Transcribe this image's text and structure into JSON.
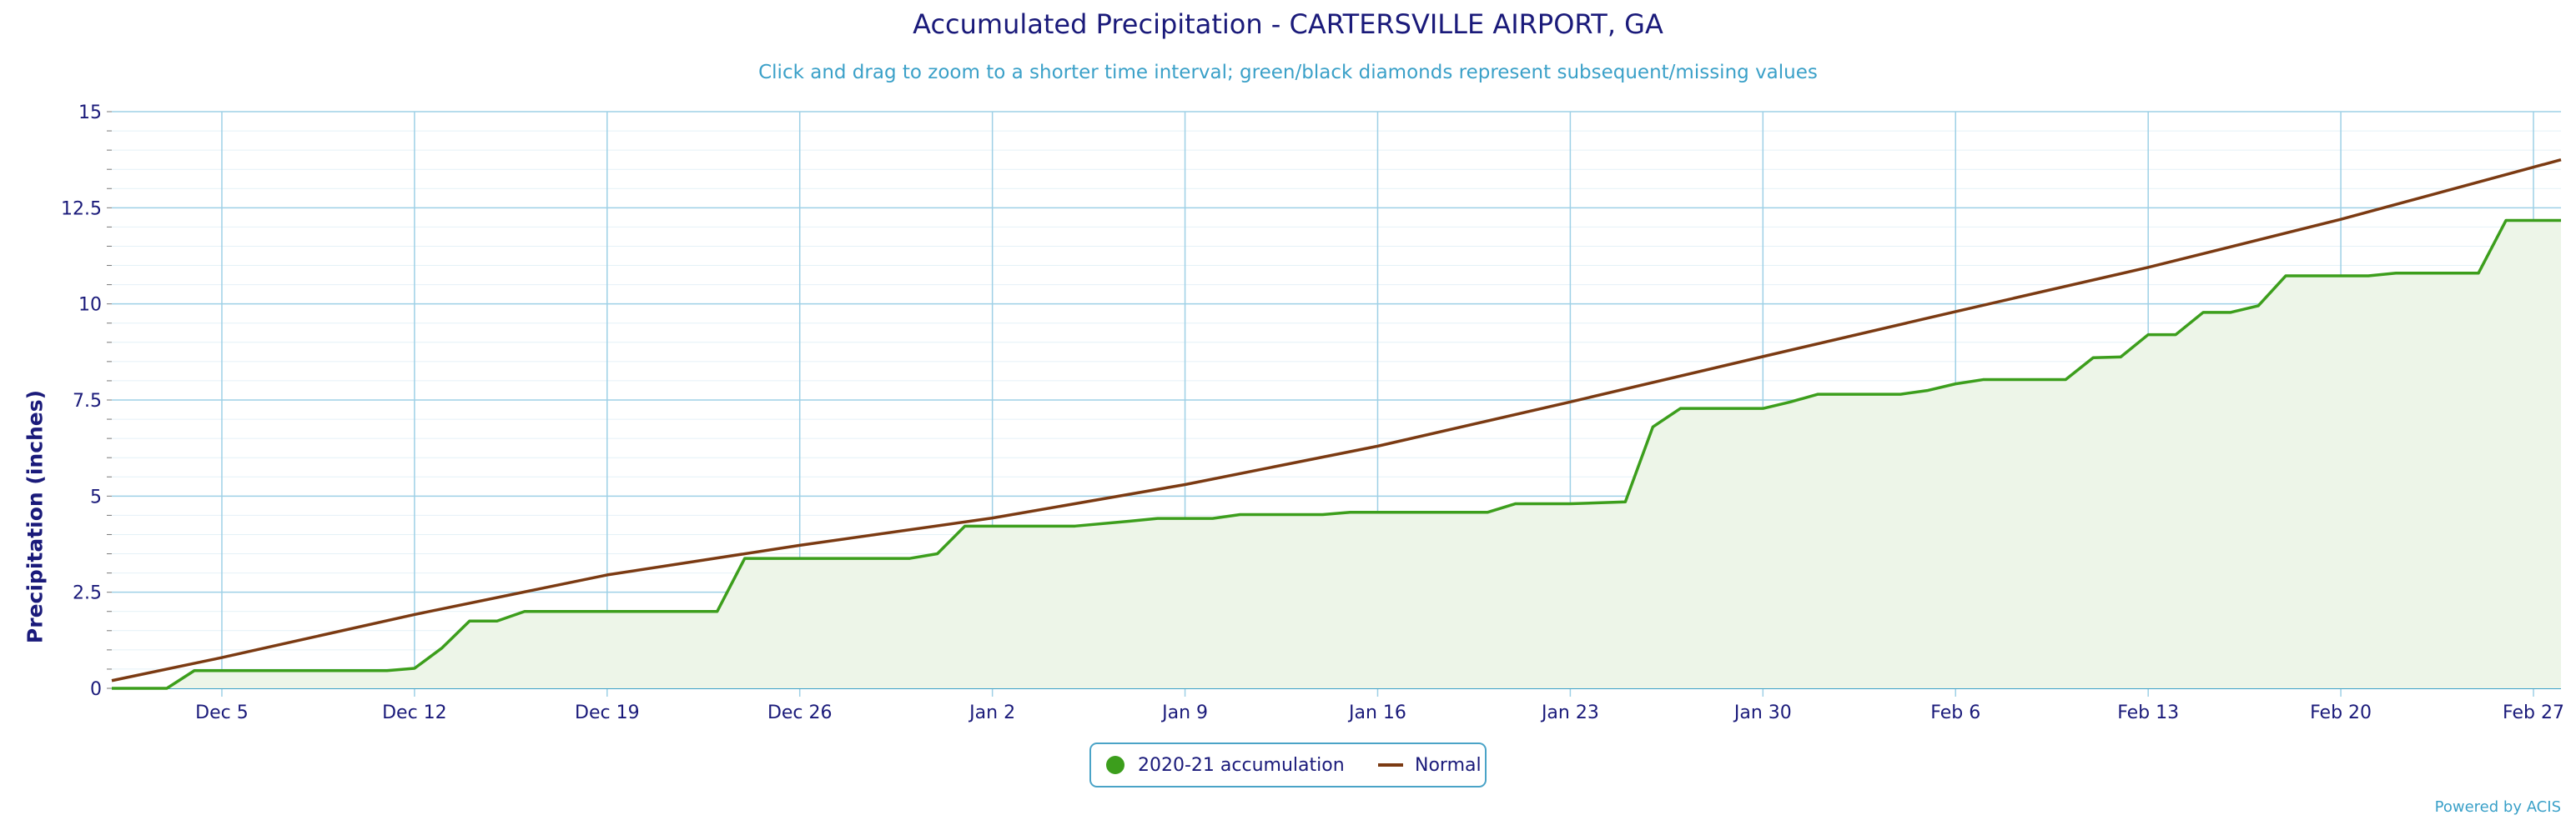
{
  "header": {
    "title": "Accumulated Precipitation - CARTERSVILLE AIRPORT, GA",
    "subtitle": "Click and drag to zoom to a shorter time interval; green/black diamonds represent subsequent/missing values"
  },
  "credit": "Powered by ACIS",
  "colors": {
    "accumulation": "#3c9e1c",
    "accumulation_fill": "#edf5e8",
    "normal": "#7b3a12",
    "grid": "#9ed0e6",
    "axis_text": "#1a1a7a"
  },
  "chart_data": {
    "type": "line",
    "title": "Accumulated Precipitation - CARTERSVILLE AIRPORT, GA",
    "subtitle": "Click and drag to zoom to a shorter time interval; green/black diamonds represent subsequent/missing values",
    "xlabel": "",
    "ylabel": "Precipitation (inches)",
    "ylim": [
      0,
      15
    ],
    "xlim": [
      "2020-12-01",
      "2021-02-28"
    ],
    "x_ticks": [
      "Dec 5",
      "Dec 12",
      "Dec 19",
      "Dec 26",
      "Jan 2",
      "Jan 9",
      "Jan 16",
      "Jan 23",
      "Jan 30",
      "Feb 6",
      "Feb 13",
      "Feb 20",
      "Feb 27"
    ],
    "x_tick_dates": [
      "2020-12-05",
      "2020-12-12",
      "2020-12-19",
      "2020-12-26",
      "2021-01-02",
      "2021-01-09",
      "2021-01-16",
      "2021-01-23",
      "2021-01-30",
      "2021-02-06",
      "2021-02-13",
      "2021-02-20",
      "2021-02-27"
    ],
    "y_ticks": [
      "0",
      "2.5",
      "5",
      "7.5",
      "10",
      "12.5",
      "15"
    ],
    "y_tick_values": [
      0,
      2.5,
      5,
      7.5,
      10,
      12.5,
      15
    ],
    "grid": true,
    "legend_position": "bottom-center",
    "series": [
      {
        "name": "2020-21 accumulation",
        "style": "area",
        "points": [
          [
            "2020-12-01",
            0
          ],
          [
            "2020-12-03",
            0
          ],
          [
            "2020-12-04",
            0.46
          ],
          [
            "2020-12-05",
            0.46
          ],
          [
            "2020-12-11",
            0.46
          ],
          [
            "2020-12-12",
            0.52
          ],
          [
            "2020-12-13",
            1.05
          ],
          [
            "2020-12-14",
            1.75
          ],
          [
            "2020-12-15",
            1.75
          ],
          [
            "2020-12-16",
            2.0
          ],
          [
            "2020-12-23",
            2.0
          ],
          [
            "2020-12-24",
            3.38
          ],
          [
            "2020-12-25",
            3.38
          ],
          [
            "2020-12-30",
            3.38
          ],
          [
            "2020-12-31",
            3.5
          ],
          [
            "2021-01-01",
            4.22
          ],
          [
            "2021-01-05",
            4.22
          ],
          [
            "2021-01-07",
            4.35
          ],
          [
            "2021-01-08",
            4.42
          ],
          [
            "2021-01-10",
            4.42
          ],
          [
            "2021-01-11",
            4.52
          ],
          [
            "2021-01-14",
            4.52
          ],
          [
            "2021-01-15",
            4.58
          ],
          [
            "2021-01-20",
            4.58
          ],
          [
            "2021-01-21",
            4.8
          ],
          [
            "2021-01-23",
            4.8
          ],
          [
            "2021-01-25",
            4.85
          ],
          [
            "2021-01-26",
            6.8
          ],
          [
            "2021-01-27",
            7.28
          ],
          [
            "2021-01-30",
            7.28
          ],
          [
            "2021-01-31",
            7.45
          ],
          [
            "2021-02-01",
            7.65
          ],
          [
            "2021-02-04",
            7.65
          ],
          [
            "2021-02-05",
            7.75
          ],
          [
            "2021-02-06",
            7.92
          ],
          [
            "2021-02-07",
            8.03
          ],
          [
            "2021-02-10",
            8.03
          ],
          [
            "2021-02-11",
            8.6
          ],
          [
            "2021-02-12",
            8.62
          ],
          [
            "2021-02-13",
            9.2
          ],
          [
            "2021-02-14",
            9.2
          ],
          [
            "2021-02-15",
            9.78
          ],
          [
            "2021-02-16",
            9.78
          ],
          [
            "2021-02-17",
            9.95
          ],
          [
            "2021-02-18",
            10.73
          ],
          [
            "2021-02-21",
            10.73
          ],
          [
            "2021-02-22",
            10.8
          ],
          [
            "2021-02-25",
            10.8
          ],
          [
            "2021-02-26",
            12.17
          ],
          [
            "2021-02-28",
            12.17
          ]
        ]
      },
      {
        "name": "Normal",
        "style": "line",
        "points": [
          [
            "2020-12-01",
            0.2
          ],
          [
            "2020-12-05",
            0.8
          ],
          [
            "2020-12-12",
            1.92
          ],
          [
            "2020-12-19",
            2.95
          ],
          [
            "2020-12-26",
            3.72
          ],
          [
            "2021-01-02",
            4.43
          ],
          [
            "2021-01-09",
            5.3
          ],
          [
            "2021-01-16",
            6.3
          ],
          [
            "2021-01-23",
            7.45
          ],
          [
            "2021-01-30",
            8.63
          ],
          [
            "2021-02-06",
            9.8
          ],
          [
            "2021-02-13",
            10.95
          ],
          [
            "2021-02-20",
            12.2
          ],
          [
            "2021-02-28",
            13.75
          ]
        ]
      }
    ]
  },
  "legend": {
    "items": [
      {
        "label": "2020-21 accumulation"
      },
      {
        "label": "Normal"
      }
    ]
  }
}
